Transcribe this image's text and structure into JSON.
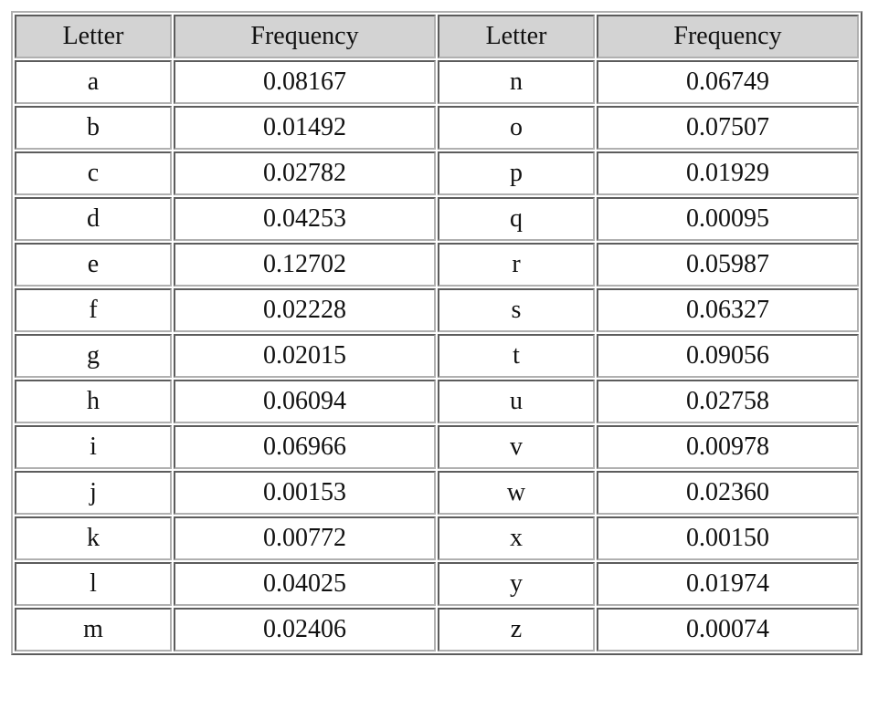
{
  "table": {
    "header": [
      "Letter",
      "Frequency",
      "Letter",
      "Frequency"
    ],
    "rows": [
      [
        "a",
        "0.08167",
        "n",
        "0.06749"
      ],
      [
        "b",
        "0.01492",
        "o",
        "0.07507"
      ],
      [
        "c",
        "0.02782",
        "p",
        "0.01929"
      ],
      [
        "d",
        "0.04253",
        "q",
        "0.00095"
      ],
      [
        "e",
        "0.12702",
        "r",
        "0.05987"
      ],
      [
        "f",
        "0.02228",
        "s",
        "0.06327"
      ],
      [
        "g",
        "0.02015",
        "t",
        "0.09056"
      ],
      [
        "h",
        "0.06094",
        "u",
        "0.02758"
      ],
      [
        "i",
        "0.06966",
        "v",
        "0.00978"
      ],
      [
        "j",
        "0.00153",
        "w",
        "0.02360"
      ],
      [
        "k",
        "0.00772",
        "x",
        "0.00150"
      ],
      [
        "l",
        "0.04025",
        "y",
        "0.01974"
      ],
      [
        "m",
        "0.02406",
        "z",
        "0.00074"
      ]
    ]
  }
}
